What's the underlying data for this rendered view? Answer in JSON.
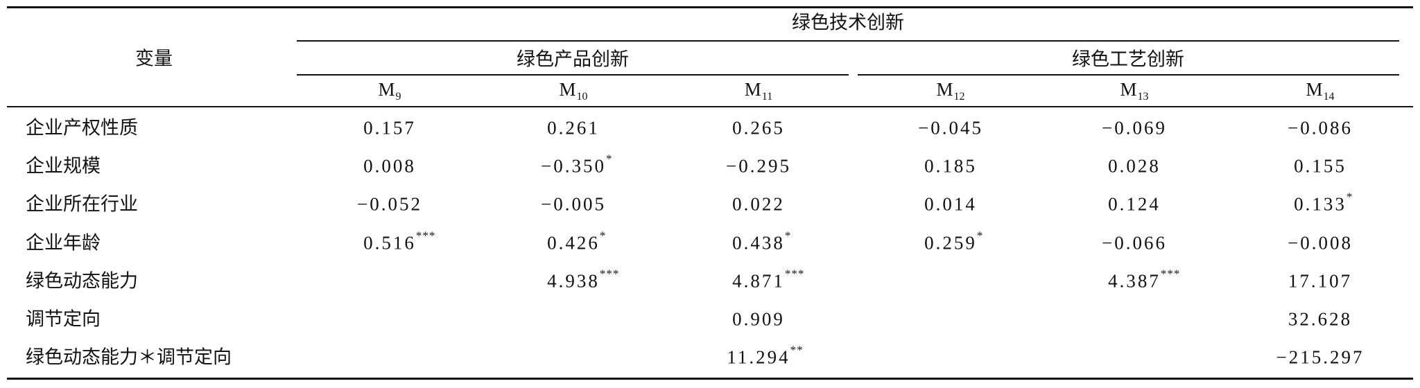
{
  "table": {
    "header": {
      "stub": "变量",
      "group": "绿色技术创新",
      "subgroups": [
        "绿色产品创新",
        "绿色工艺创新"
      ],
      "models": [
        {
          "letter": "M",
          "sub": "9"
        },
        {
          "letter": "M",
          "sub": "10"
        },
        {
          "letter": "M",
          "sub": "11"
        },
        {
          "letter": "M",
          "sub": "12"
        },
        {
          "letter": "M",
          "sub": "13"
        },
        {
          "letter": "M",
          "sub": "14"
        }
      ]
    },
    "rows": [
      {
        "label": "企业产权性质",
        "cells": [
          {
            "value": "0.157"
          },
          {
            "value": "0.261"
          },
          {
            "value": "0.265"
          },
          {
            "value": "−0.045"
          },
          {
            "value": "−0.069"
          },
          {
            "value": "−0.086"
          }
        ]
      },
      {
        "label": "企业规模",
        "cells": [
          {
            "value": "0.008"
          },
          {
            "value": "−0.350",
            "stars": "*"
          },
          {
            "value": "−0.295"
          },
          {
            "value": "0.185"
          },
          {
            "value": "0.028"
          },
          {
            "value": "0.155"
          }
        ]
      },
      {
        "label": "企业所在行业",
        "cells": [
          {
            "value": "−0.052"
          },
          {
            "value": "−0.005"
          },
          {
            "value": "0.022"
          },
          {
            "value": "0.014"
          },
          {
            "value": "0.124"
          },
          {
            "value": "0.133",
            "stars": "*"
          }
        ]
      },
      {
        "label": "企业年龄",
        "cells": [
          {
            "value": "0.516",
            "stars": "***"
          },
          {
            "value": "0.426",
            "stars": "*"
          },
          {
            "value": "0.438",
            "stars": "*"
          },
          {
            "value": "0.259",
            "stars": "*"
          },
          {
            "value": "−0.066"
          },
          {
            "value": "−0.008"
          }
        ]
      },
      {
        "label": "绿色动态能力",
        "cells": [
          null,
          {
            "value": "4.938",
            "stars": "***"
          },
          {
            "value": "4.871",
            "stars": "***"
          },
          null,
          {
            "value": "4.387",
            "stars": "***"
          },
          {
            "value": "17.107"
          }
        ]
      },
      {
        "label": "调节定向",
        "cells": [
          null,
          null,
          {
            "value": "0.909"
          },
          null,
          null,
          {
            "value": "32.628"
          }
        ]
      },
      {
        "label": "绿色动态能力＊调节定向",
        "cells": [
          null,
          null,
          {
            "value": "11.294",
            "stars": "**"
          },
          null,
          null,
          {
            "value": "−215.297"
          }
        ]
      }
    ]
  }
}
